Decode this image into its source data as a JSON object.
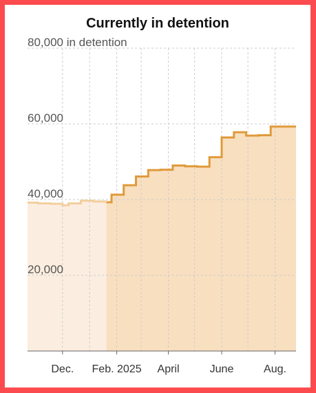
{
  "chart_data": {
    "type": "area",
    "title": "Currently in detention",
    "y_unit_label": "in detention",
    "ylim": [
      0,
      80000
    ],
    "y_ticks": [
      {
        "value": 80000,
        "label": "80,000"
      },
      {
        "value": 60000,
        "label": "60,000"
      },
      {
        "value": 40000,
        "label": "40,000"
      },
      {
        "value": 20000,
        "label": "20,000"
      }
    ],
    "x_range": [
      "2024-10-22",
      "2025-08-25"
    ],
    "x_ticks": [
      {
        "date": "2024-12-01",
        "label": "Dec."
      },
      {
        "date": "2025-02-01",
        "label": "Feb. 2025"
      },
      {
        "date": "2025-04-01",
        "label": "April"
      },
      {
        "date": "2025-06-01",
        "label": "June"
      },
      {
        "date": "2025-08-01",
        "label": "Aug."
      }
    ],
    "vertical_grid_dates": [
      "2024-12-01",
      "2025-01-01",
      "2025-02-01",
      "2025-03-01",
      "2025-04-01",
      "2025-05-01",
      "2025-06-01",
      "2025-07-01",
      "2025-08-01"
    ],
    "grid": true,
    "highlight_start": "2025-01-20",
    "series": [
      {
        "color": "#e09a3a",
        "fill": "#f8dfc0",
        "points": [
          {
            "date": "2025-01-20",
            "value": 39300
          },
          {
            "date": "2025-01-26",
            "value": 41300
          },
          {
            "date": "2025-02-09",
            "value": 43800
          },
          {
            "date": "2025-02-23",
            "value": 46100
          },
          {
            "date": "2025-03-09",
            "value": 47800
          },
          {
            "date": "2025-03-23",
            "value": 47900
          },
          {
            "date": "2025-04-06",
            "value": 49000
          },
          {
            "date": "2025-04-20",
            "value": 48800
          },
          {
            "date": "2025-05-04",
            "value": 48700
          },
          {
            "date": "2025-05-18",
            "value": 51200
          },
          {
            "date": "2025-06-01",
            "value": 56400
          },
          {
            "date": "2025-06-15",
            "value": 57800
          },
          {
            "date": "2025-06-29",
            "value": 56900
          },
          {
            "date": "2025-07-13",
            "value": 57000
          },
          {
            "date": "2025-07-27",
            "value": 59300
          },
          {
            "date": "2025-08-25",
            "value": 59300
          }
        ]
      },
      {
        "color": "#f3cf9e",
        "fill": "#fbeee0",
        "points": [
          {
            "date": "2024-10-22",
            "value": 39200
          },
          {
            "date": "2024-11-03",
            "value": 39000
          },
          {
            "date": "2024-11-17",
            "value": 38900
          },
          {
            "date": "2024-12-01",
            "value": 38500
          },
          {
            "date": "2024-12-08",
            "value": 39000
          },
          {
            "date": "2024-12-22",
            "value": 39700
          },
          {
            "date": "2025-01-05",
            "value": 39500
          },
          {
            "date": "2025-01-20",
            "value": 39300
          }
        ]
      }
    ]
  }
}
